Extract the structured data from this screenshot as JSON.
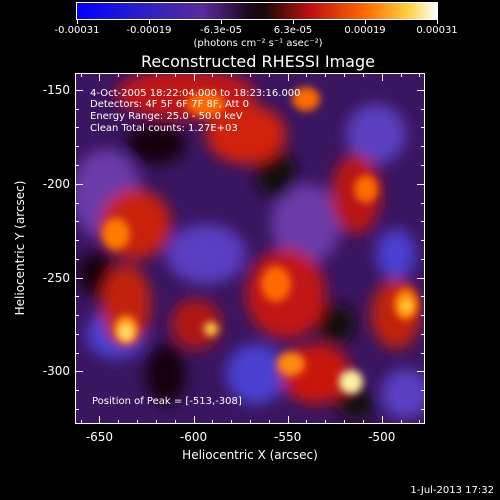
{
  "colorbar": {
    "ticks": [
      "-0.00031",
      "-0.00019",
      "-6.3e-05",
      "6.3e-05",
      "0.00019",
      "0.00031"
    ],
    "units": "(photons cm⁻² s⁻¹ asec⁻²)"
  },
  "title": "Reconstructed RHESSI Image",
  "annotations": {
    "time_range": "4-Oct-2005 18:22:04.000 to 18:23:16.000",
    "detectors": "Detectors: 4F 5F 6F 7F 8F, Att 0",
    "energy_range": "Energy Range: 25.0 - 50.0 keV",
    "method": "Clean     Total counts: 1.27E+03",
    "peak": "Position of Peak = [-513,-308]"
  },
  "axes": {
    "xlabel": "Heliocentric X (arcsec)",
    "ylabel": "Heliocentric Y (arcsec)",
    "xticks": [
      "-650",
      "-600",
      "-550",
      "-500"
    ],
    "yticks": [
      "-150",
      "-200",
      "-250",
      "-300"
    ],
    "xlim": [
      -663,
      -477
    ],
    "ylim": [
      -328,
      -141
    ]
  },
  "timestamp": "1-Jul-2013 17:32"
}
